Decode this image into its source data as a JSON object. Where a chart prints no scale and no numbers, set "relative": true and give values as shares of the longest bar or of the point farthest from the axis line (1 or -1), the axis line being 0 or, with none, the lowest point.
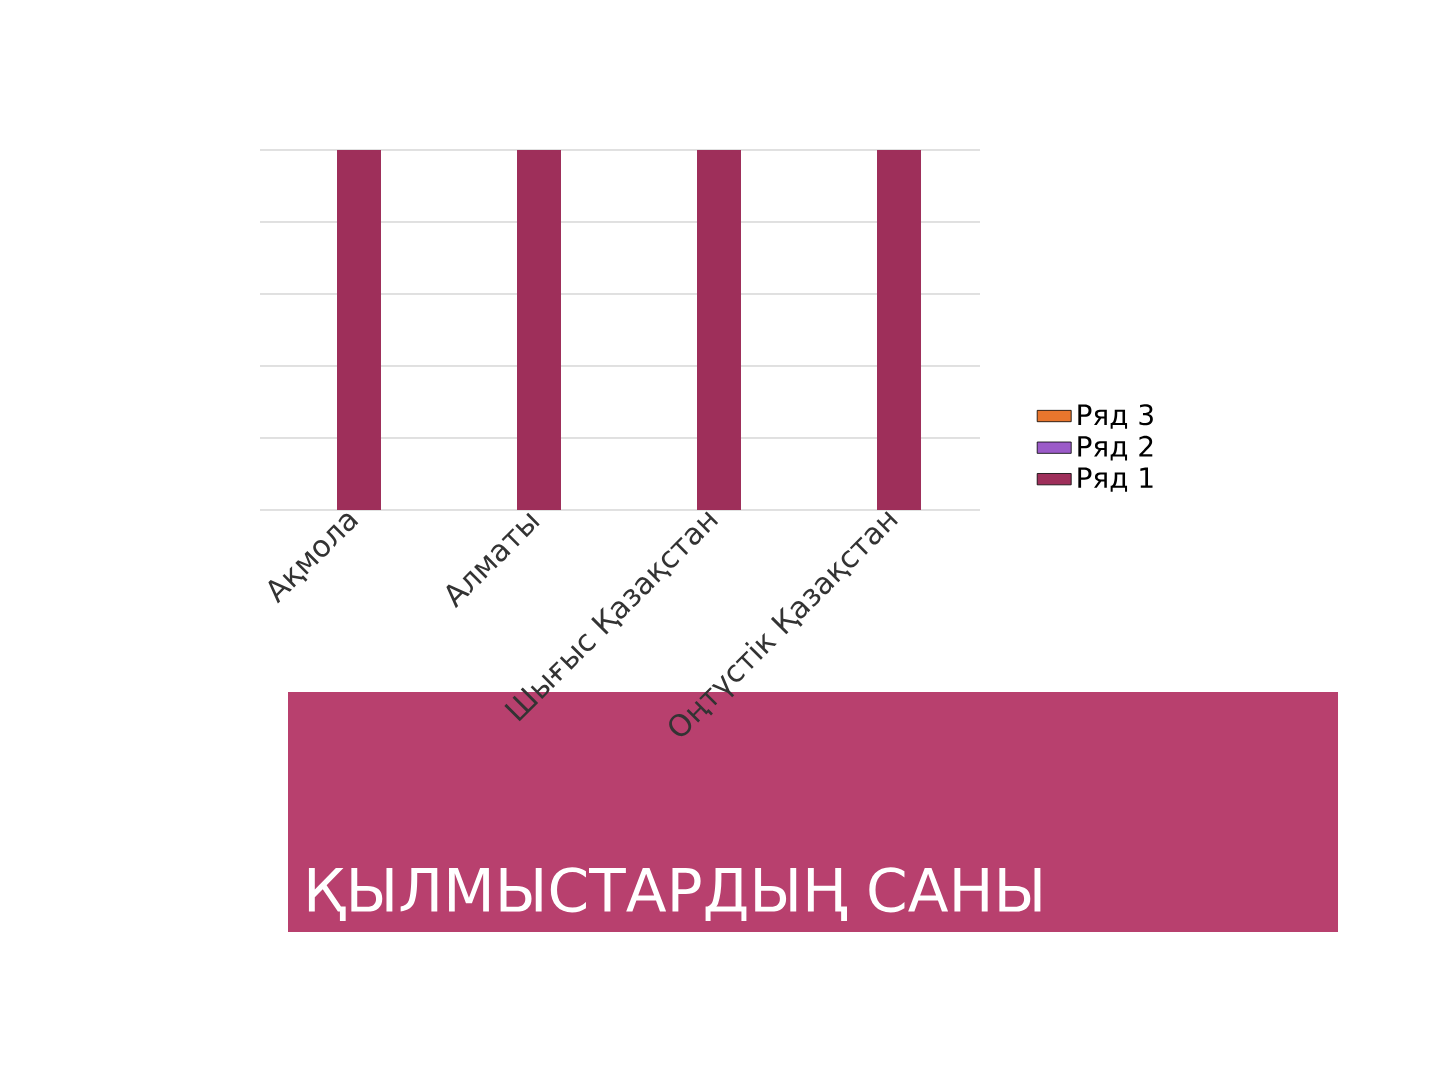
{
  "chart_data": {
    "type": "bar",
    "title": "ҚЫЛМЫСТАРДЫҢ САНЫ",
    "relative": true,
    "grid": "y",
    "legend": "right",
    "categories": [
      "Ақмола",
      "Алматы",
      "Шығыс Қазақстан",
      "Оңтүстік Қазақстан"
    ],
    "series": [
      {
        "name": "Ряд 1",
        "color": "#9e2f5a",
        "values": [
          1,
          1,
          1,
          1
        ]
      },
      {
        "name": "Ряд 2",
        "color": "#9b5bc8",
        "values": [
          null,
          null,
          null,
          null
        ]
      },
      {
        "name": "Ряд 3",
        "color": "#e8762d",
        "values": [
          null,
          null,
          null,
          null
        ]
      }
    ]
  }
}
